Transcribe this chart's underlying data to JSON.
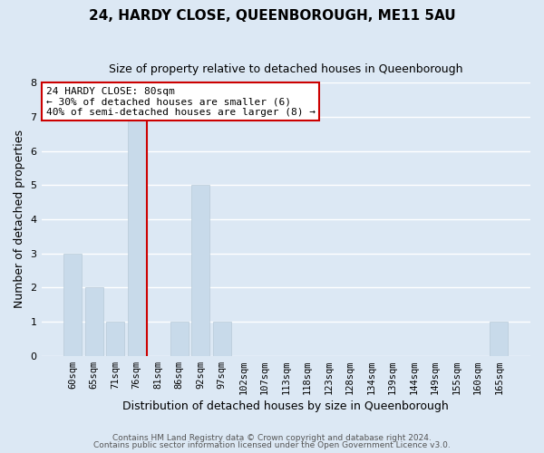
{
  "title": "24, HARDY CLOSE, QUEENBOROUGH, ME11 5AU",
  "subtitle": "Size of property relative to detached houses in Queenborough",
  "xlabel": "Distribution of detached houses by size in Queenborough",
  "ylabel": "Number of detached properties",
  "footer_line1": "Contains HM Land Registry data © Crown copyright and database right 2024.",
  "footer_line2": "Contains public sector information licensed under the Open Government Licence v3.0.",
  "bin_labels": [
    "60sqm",
    "65sqm",
    "71sqm",
    "76sqm",
    "81sqm",
    "86sqm",
    "92sqm",
    "97sqm",
    "102sqm",
    "107sqm",
    "113sqm",
    "118sqm",
    "123sqm",
    "128sqm",
    "134sqm",
    "139sqm",
    "144sqm",
    "149sqm",
    "155sqm",
    "160sqm",
    "165sqm"
  ],
  "bar_heights": [
    3,
    2,
    1,
    7,
    0,
    1,
    5,
    1,
    0,
    0,
    0,
    0,
    0,
    0,
    0,
    0,
    0,
    0,
    0,
    0,
    1
  ],
  "bar_color": "#c8daea",
  "bar_edge_color": "#b8cad8",
  "reference_line_color": "#cc0000",
  "ylim": [
    0,
    8
  ],
  "yticks": [
    0,
    1,
    2,
    3,
    4,
    5,
    6,
    7,
    8
  ],
  "grid_color": "#ffffff",
  "bg_color": "#dce8f4",
  "annotation_title": "24 HARDY CLOSE: 80sqm",
  "annotation_line1": "← 30% of detached houses are smaller (6)",
  "annotation_line2": "40% of semi-detached houses are larger (8) →",
  "annotation_box_color": "#ffffff",
  "annotation_box_edge_color": "#cc0000"
}
